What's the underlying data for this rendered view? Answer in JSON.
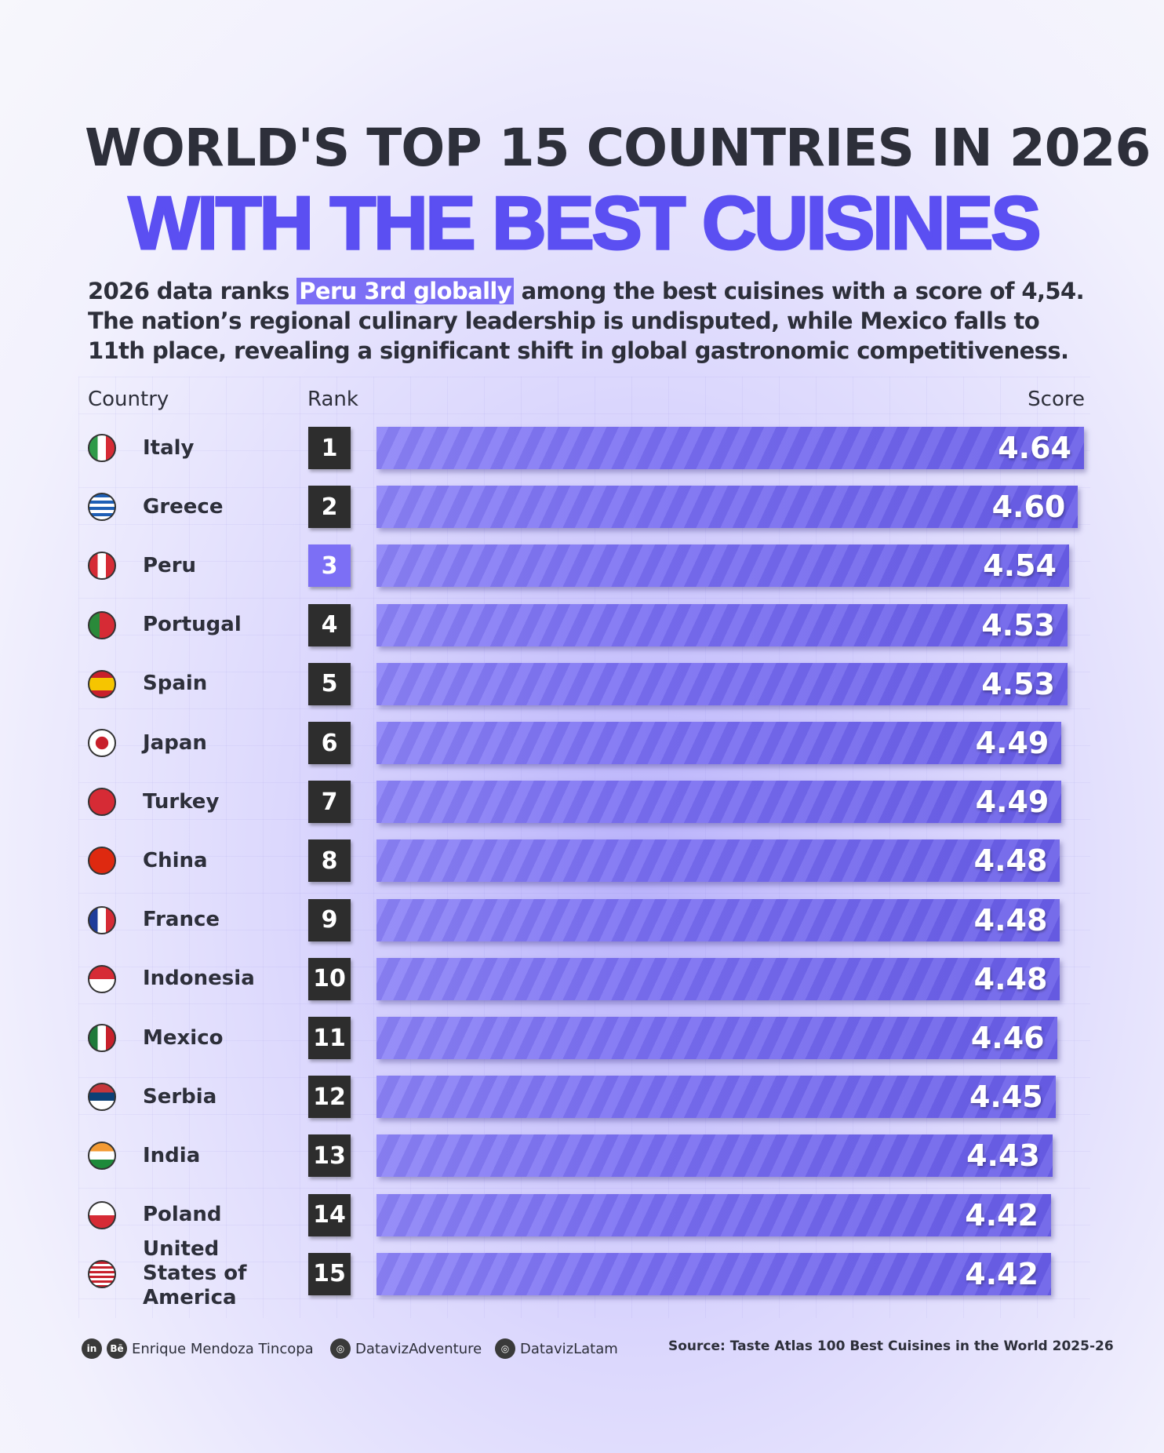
{
  "title_line1": "WORLD'S TOP 15 COUNTRIES IN 2026",
  "title_line2": "WITH THE BEST CUISINES",
  "desc": {
    "pre": "2026 data ranks ",
    "highlight": "Peru 3rd globally",
    "post": " among the best cuisines with a score of 4,54. The nation’s regional culinary leadership is undisputed, while Mexico falls to 11th place, revealing a significant shift in global gastronomic competitiveness."
  },
  "headers": {
    "country": "Country",
    "rank": "Rank",
    "score": "Score"
  },
  "colors": {
    "accent": "#5b4ff2",
    "bar": "#7c6ff5",
    "rank_box": "#2d2d2d"
  },
  "chart_data": {
    "type": "bar",
    "title": "World's Top 15 Countries in 2026 with the Best Cuisines",
    "xlabel": "Score",
    "ylabel": "Country",
    "categories": [
      "Italy",
      "Greece",
      "Peru",
      "Portugal",
      "Spain",
      "Japan",
      "Turkey",
      "China",
      "France",
      "Indonesia",
      "Mexico",
      "Serbia",
      "India",
      "Poland",
      "United States of America"
    ],
    "ranks": [
      "1",
      "2",
      "3",
      "4",
      "5",
      "6",
      "7",
      "8",
      "9",
      "10",
      "11",
      "12",
      "13",
      "14",
      "15"
    ],
    "values": [
      4.64,
      4.6,
      4.54,
      4.53,
      4.53,
      4.49,
      4.49,
      4.48,
      4.48,
      4.48,
      4.46,
      4.45,
      4.43,
      4.42,
      4.42
    ],
    "labels": [
      "4.64",
      "4.60",
      "4.54",
      "4.53",
      "4.53",
      "4.49",
      "4.49",
      "4.48",
      "4.48",
      "4.48",
      "4.46",
      "4.45",
      "4.43",
      "4.42",
      "4.42"
    ],
    "highlight": "Peru"
  },
  "flags": [
    "italy",
    "greece",
    "peru",
    "portugal",
    "spain",
    "japan",
    "turkey",
    "china",
    "france",
    "indonesia",
    "mexico",
    "serbia",
    "india",
    "poland",
    "usa"
  ],
  "footer": {
    "author": "Enrique Mendoza Tincopa",
    "ig1": "DatavizAdventure",
    "ig2": "DatavizLatam",
    "source": "Source: Taste Atlas 100 Best Cuisines in the World 2025-26",
    "icons": {
      "linkedin": "in",
      "behance": "Bē"
    }
  }
}
